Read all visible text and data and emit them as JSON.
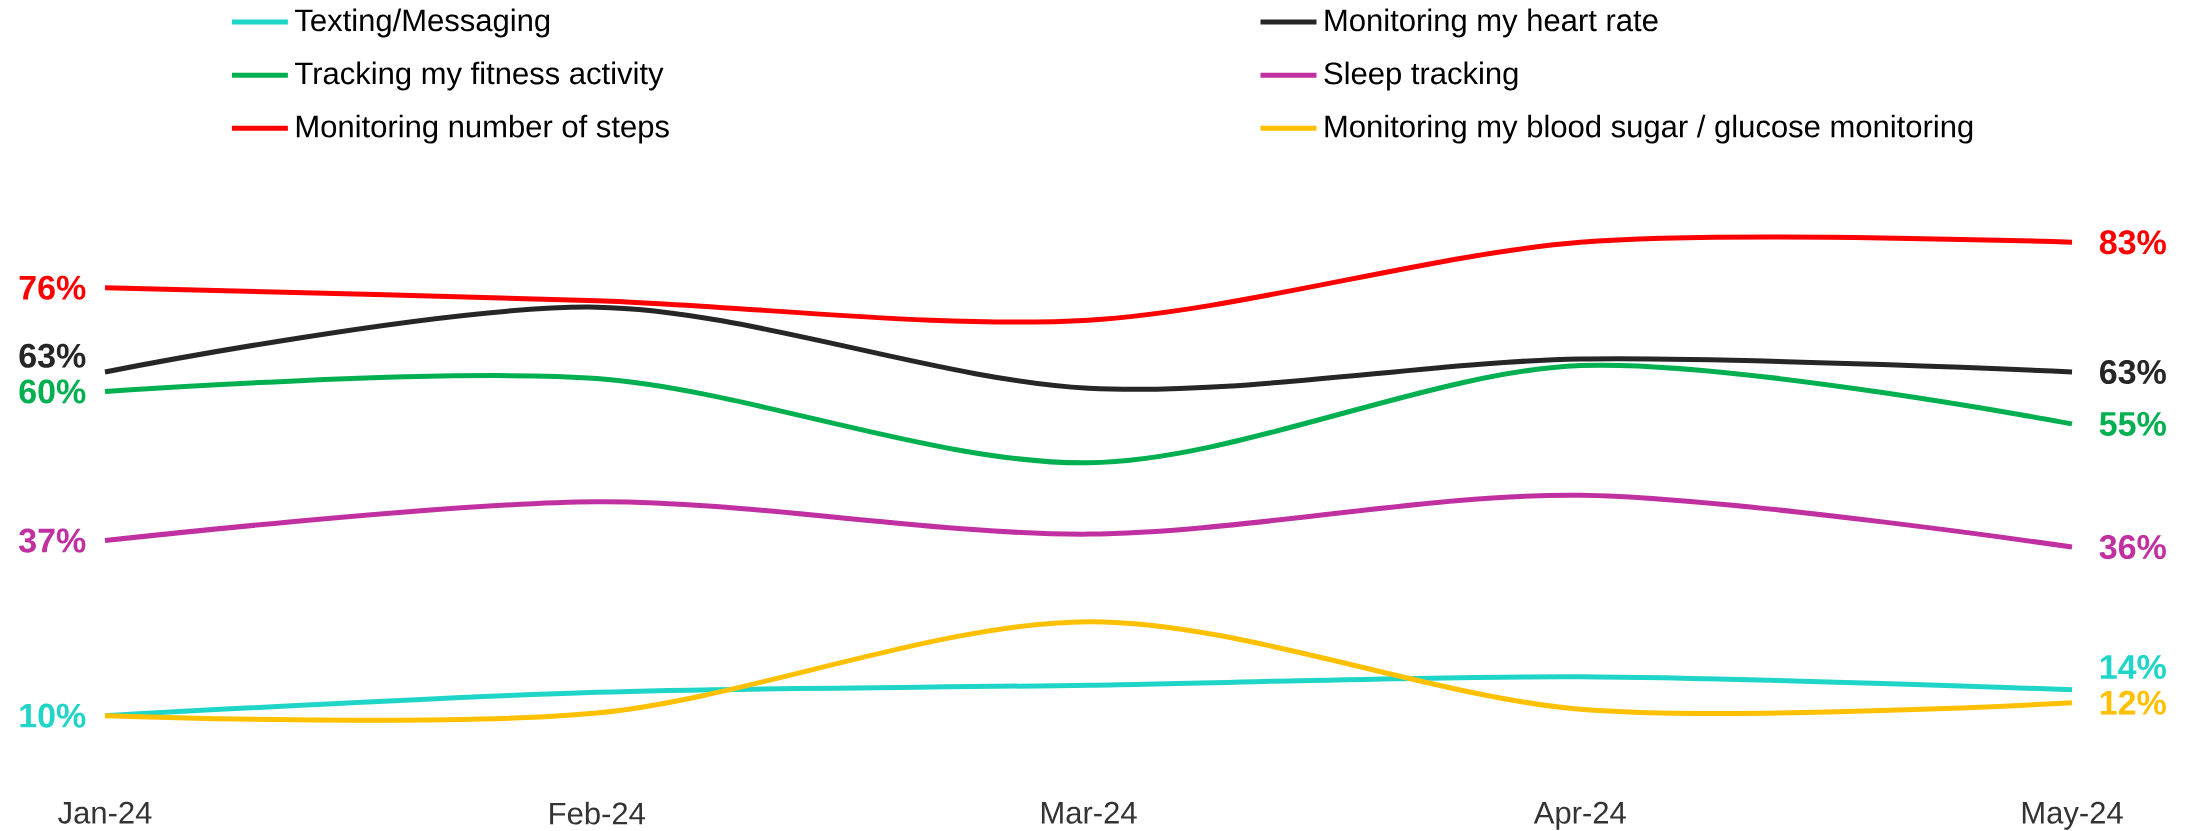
{
  "chart_data": {
    "type": "line",
    "categories": [
      "Jan-24",
      "Feb-24",
      "Mar-24",
      "Apr-24",
      "May-24"
    ],
    "legend": "top",
    "marker": "none",
    "line_style": "solid",
    "series": [
      {
        "name": "Texting/Messaging",
        "color": "#1fd5c8",
        "values": [
          10,
          13.6,
          14.7,
          16,
          14
        ],
        "value_labels": [
          "10%",
          null,
          null,
          null,
          "14%"
        ]
      },
      {
        "name": "Monitoring my heart rate",
        "color": "#262626",
        "values": [
          63,
          73,
          60.5,
          65,
          63
        ],
        "value_labels": [
          "63%",
          null,
          null,
          null,
          "63%"
        ]
      },
      {
        "name": "Tracking my fitness activity",
        "color": "#00b050",
        "values": [
          60,
          62,
          49,
          64,
          55
        ],
        "value_labels": [
          "60%",
          null,
          null,
          null,
          "55%"
        ]
      },
      {
        "name": "Sleep tracking",
        "color": "#c030a0",
        "values": [
          37,
          43,
          38,
          44,
          36
        ],
        "value_labels": [
          "37%",
          null,
          null,
          null,
          "36%"
        ]
      },
      {
        "name": "Monitoring number of steps",
        "color": "#ff0000",
        "values": [
          76,
          74,
          71,
          83,
          83
        ],
        "value_labels": [
          "76%",
          null,
          null,
          null,
          "83%"
        ]
      },
      {
        "name": "Monitoring my blood sugar / glucose monitoring",
        "color": "#ffc000",
        "values": [
          10,
          10.4,
          24.5,
          11,
          12
        ],
        "value_labels": [
          null,
          null,
          null,
          null,
          "12%"
        ]
      }
    ]
  }
}
